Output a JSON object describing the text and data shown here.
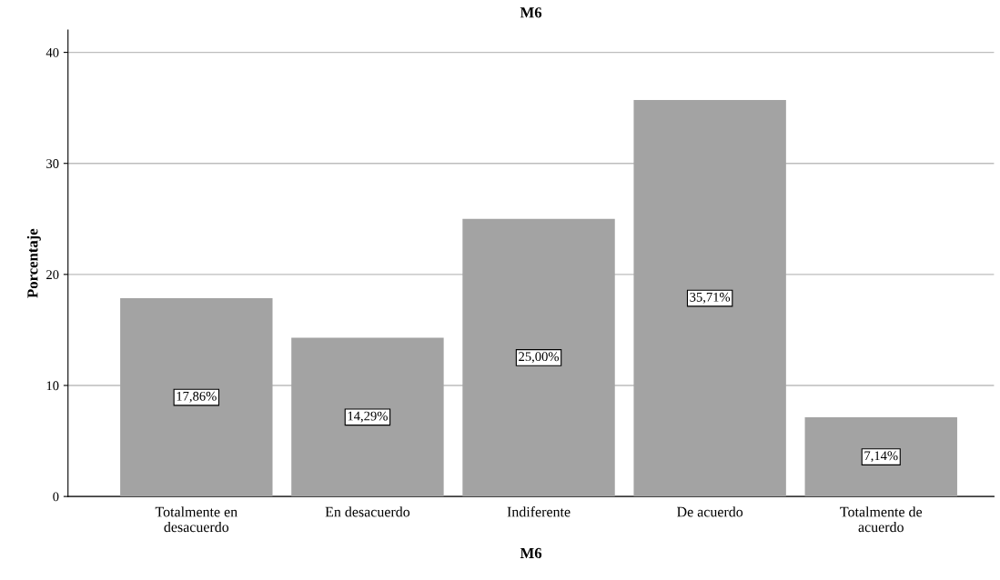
{
  "chart_data": {
    "type": "bar",
    "title": "M6",
    "xlabel": "M6",
    "ylabel": "Porcentaje",
    "categories": [
      "Totalmente en\ndesacuerdo",
      "En desacuerdo",
      "Indiferente",
      "De acuerdo",
      "Totalmente de\nacuerdo"
    ],
    "values": [
      17.86,
      14.29,
      25.0,
      35.71,
      7.14
    ],
    "value_labels": [
      "17,86%",
      "14,29%",
      "25,00%",
      "35,71%",
      "7,14%"
    ],
    "color": "#a3a3a3",
    "ylim": [
      0,
      42
    ],
    "yticks": [
      0,
      10,
      20,
      30,
      40
    ],
    "grid": "y",
    "legend": false
  }
}
